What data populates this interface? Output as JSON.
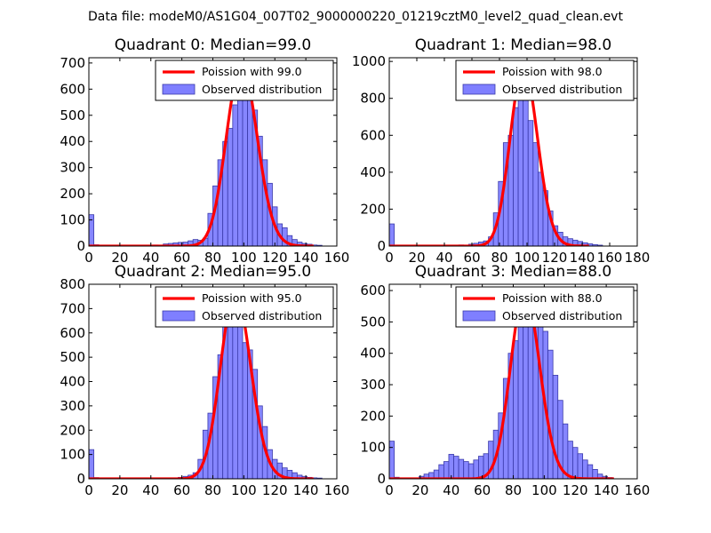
{
  "suptitle": "Data file: modeM0/AS1G04_007T02_9000000220_01219cztM0_level2_quad_clean.evt",
  "colors": {
    "poisson_line": "#ff0000",
    "hist_fill": "#7f7fff",
    "hist_edge": "#3a3aaa"
  },
  "chart_data": [
    {
      "type": "bar",
      "title": "Quadrant 0: Median=99.0",
      "legend": [
        "Poission with 99.0",
        "Observed distribution"
      ],
      "legend_position": "top-right",
      "xlim": [
        0,
        160
      ],
      "ylim": [
        0,
        720
      ],
      "xticks": [
        0,
        20,
        40,
        60,
        80,
        100,
        120,
        140,
        160
      ],
      "yticks": [
        0,
        100,
        200,
        300,
        400,
        500,
        600,
        700
      ],
      "xtick_labels": [
        "0",
        "20",
        "40",
        "60",
        "80",
        "100",
        "120",
        "140",
        "160"
      ],
      "ytick_labels": [
        "0",
        "100",
        "200",
        "300",
        "400",
        "500",
        "600",
        "700"
      ],
      "bin_width": 3.2,
      "poisson_mean": 99.0,
      "poisson_scale": 690,
      "bins": [
        [
          0,
          120
        ],
        [
          3.2,
          5
        ],
        [
          9.6,
          3
        ],
        [
          16,
          3
        ],
        [
          32,
          3
        ],
        [
          41.6,
          4
        ],
        [
          48,
          8
        ],
        [
          51.2,
          10
        ],
        [
          54.4,
          12
        ],
        [
          57.6,
          14
        ],
        [
          60.8,
          15
        ],
        [
          64,
          20
        ],
        [
          67.2,
          25
        ],
        [
          70.4,
          22
        ],
        [
          73.6,
          30
        ],
        [
          76.8,
          125
        ],
        [
          80,
          230
        ],
        [
          83.2,
          330
        ],
        [
          86.4,
          400
        ],
        [
          89.6,
          450
        ],
        [
          92.8,
          540
        ],
        [
          96,
          690
        ],
        [
          99.2,
          660
        ],
        [
          102.4,
          600
        ],
        [
          105.6,
          520
        ],
        [
          108.8,
          420
        ],
        [
          112,
          330
        ],
        [
          115.2,
          240
        ],
        [
          118.4,
          150
        ],
        [
          121.6,
          85
        ],
        [
          124.8,
          70
        ],
        [
          128,
          40
        ],
        [
          131.2,
          25
        ],
        [
          134.4,
          15
        ],
        [
          137.6,
          10
        ],
        [
          140.8,
          7
        ],
        [
          144,
          4
        ],
        [
          147.2,
          3
        ]
      ]
    },
    {
      "type": "bar",
      "title": "Quadrant 1: Median=98.0",
      "legend": [
        "Poission with 98.0",
        "Observed distribution"
      ],
      "legend_position": "top-right",
      "xlim": [
        0,
        180
      ],
      "ylim": [
        0,
        1020
      ],
      "xticks": [
        0,
        20,
        40,
        60,
        80,
        100,
        120,
        140,
        160,
        180
      ],
      "yticks": [
        0,
        200,
        400,
        600,
        800,
        1000
      ],
      "xtick_labels": [
        "0",
        "20",
        "40",
        "60",
        "80",
        "100",
        "120",
        "140",
        "160",
        "180"
      ],
      "ytick_labels": [
        "0",
        "200",
        "400",
        "600",
        "800",
        "1000"
      ],
      "bin_width": 3.6,
      "poisson_mean": 98.0,
      "poisson_scale": 970,
      "bins": [
        [
          0,
          120
        ],
        [
          3.6,
          5
        ],
        [
          10.8,
          3
        ],
        [
          21.6,
          3
        ],
        [
          39.6,
          4
        ],
        [
          50.4,
          6
        ],
        [
          57.6,
          10
        ],
        [
          61.2,
          15
        ],
        [
          64.8,
          22
        ],
        [
          68.4,
          28
        ],
        [
          72,
          50
        ],
        [
          75.6,
          180
        ],
        [
          79.2,
          350
        ],
        [
          82.8,
          560
        ],
        [
          86.4,
          600
        ],
        [
          90,
          750
        ],
        [
          93.6,
          860
        ],
        [
          97.2,
          980
        ],
        [
          100.8,
          680
        ],
        [
          104.4,
          560
        ],
        [
          108,
          400
        ],
        [
          111.6,
          300
        ],
        [
          115.2,
          190
        ],
        [
          118.8,
          110
        ],
        [
          122.4,
          75
        ],
        [
          126,
          50
        ],
        [
          129.6,
          40
        ],
        [
          133.2,
          32
        ],
        [
          136.8,
          25
        ],
        [
          140.4,
          18
        ],
        [
          144,
          12
        ],
        [
          147.6,
          8
        ],
        [
          151.2,
          5
        ]
      ]
    },
    {
      "type": "bar",
      "title": "Quadrant 2: Median=95.0",
      "legend": [
        "Poission with 95.0",
        "Observed distribution"
      ],
      "legend_position": "top-right",
      "xlim": [
        0,
        160
      ],
      "ylim": [
        0,
        800
      ],
      "xticks": [
        0,
        20,
        40,
        60,
        80,
        100,
        120,
        140,
        160
      ],
      "yticks": [
        0,
        100,
        200,
        300,
        400,
        500,
        600,
        700,
        800
      ],
      "xtick_labels": [
        "0",
        "20",
        "40",
        "60",
        "80",
        "100",
        "120",
        "140",
        "160"
      ],
      "ytick_labels": [
        "0",
        "100",
        "200",
        "300",
        "400",
        "500",
        "600",
        "700",
        "800"
      ],
      "bin_width": 3.2,
      "poisson_mean": 95.0,
      "poisson_scale": 765,
      "bins": [
        [
          0,
          120
        ],
        [
          3.2,
          5
        ],
        [
          12.8,
          3
        ],
        [
          22.4,
          3
        ],
        [
          38.4,
          3
        ],
        [
          48,
          4
        ],
        [
          57.6,
          6
        ],
        [
          60.8,
          10
        ],
        [
          64,
          15
        ],
        [
          67.2,
          25
        ],
        [
          70.4,
          80
        ],
        [
          73.6,
          200
        ],
        [
          76.8,
          270
        ],
        [
          80,
          420
        ],
        [
          83.2,
          510
        ],
        [
          86.4,
          680
        ],
        [
          89.6,
          640
        ],
        [
          92.8,
          760
        ],
        [
          96,
          640
        ],
        [
          99.2,
          560
        ],
        [
          102.4,
          530
        ],
        [
          105.6,
          450
        ],
        [
          108.8,
          300
        ],
        [
          112,
          215
        ],
        [
          115.2,
          120
        ],
        [
          118.4,
          80
        ],
        [
          121.6,
          65
        ],
        [
          124.8,
          45
        ],
        [
          128,
          35
        ],
        [
          131.2,
          25
        ],
        [
          134.4,
          15
        ],
        [
          137.6,
          10
        ],
        [
          140.8,
          6
        ],
        [
          144,
          4
        ],
        [
          147.2,
          3
        ]
      ]
    },
    {
      "type": "bar",
      "title": "Quadrant 3: Median=88.0",
      "legend": [
        "Poission with 88.0",
        "Observed distribution"
      ],
      "legend_position": "top-right",
      "xlim": [
        0,
        160
      ],
      "ylim": [
        0,
        620
      ],
      "xticks": [
        0,
        20,
        40,
        60,
        80,
        100,
        120,
        140,
        160
      ],
      "yticks": [
        0,
        100,
        200,
        300,
        400,
        500,
        600
      ],
      "xtick_labels": [
        "0",
        "20",
        "40",
        "60",
        "80",
        "100",
        "120",
        "140",
        "160"
      ],
      "ytick_labels": [
        "0",
        "100",
        "200",
        "300",
        "400",
        "500",
        "600"
      ],
      "bin_width": 3.2,
      "poisson_mean": 88.0,
      "poisson_scale": 595,
      "bins": [
        [
          0,
          120
        ],
        [
          3.2,
          5
        ],
        [
          19.2,
          8
        ],
        [
          22.4,
          15
        ],
        [
          25.6,
          20
        ],
        [
          28.8,
          28
        ],
        [
          32,
          45
        ],
        [
          35.2,
          55
        ],
        [
          38.4,
          78
        ],
        [
          41.6,
          72
        ],
        [
          44.8,
          62
        ],
        [
          48,
          55
        ],
        [
          51.2,
          48
        ],
        [
          54.4,
          60
        ],
        [
          57.6,
          72
        ],
        [
          60.8,
          80
        ],
        [
          64,
          120
        ],
        [
          67.2,
          155
        ],
        [
          70.4,
          210
        ],
        [
          73.6,
          320
        ],
        [
          76.8,
          400
        ],
        [
          80,
          440
        ],
        [
          83.2,
          510
        ],
        [
          86.4,
          560
        ],
        [
          89.6,
          590
        ],
        [
          92.8,
          560
        ],
        [
          96,
          540
        ],
        [
          99.2,
          470
        ],
        [
          102.4,
          410
        ],
        [
          105.6,
          330
        ],
        [
          108.8,
          250
        ],
        [
          112,
          175
        ],
        [
          115.2,
          120
        ],
        [
          118.4,
          100
        ],
        [
          121.6,
          80
        ],
        [
          124.8,
          60
        ],
        [
          128,
          45
        ],
        [
          131.2,
          30
        ],
        [
          134.4,
          15
        ],
        [
          137.6,
          8
        ],
        [
          140.8,
          4
        ]
      ]
    }
  ]
}
